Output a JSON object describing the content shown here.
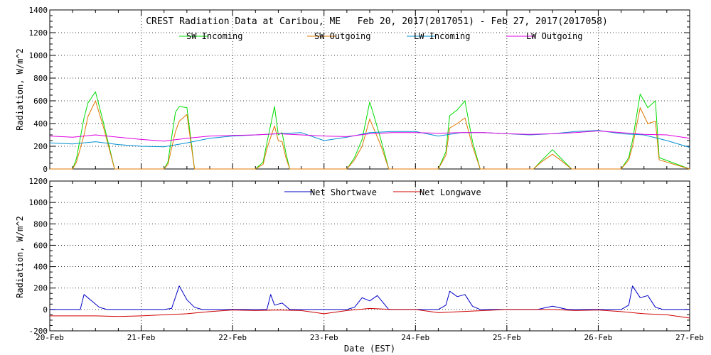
{
  "colors": {
    "sw_incoming": "#00dd00",
    "sw_outgoing": "#e07800",
    "lw_incoming": "#0090d0",
    "lw_outgoing": "#e000e0",
    "net_shortwave": "#0000c8",
    "net_longwave": "#d00000",
    "axis": "#000000",
    "grid": "#000000"
  },
  "chart_data": [
    {
      "type": "line",
      "title": "CREST Radiation Data at Caribou, ME   Feb 20, 2017(2017051) - Feb 27, 2017(2017058)",
      "xlabel": "",
      "ylabel": "Radiation, W/m^2",
      "ylim": [
        0,
        1400
      ],
      "yticks": [
        0,
        200,
        400,
        600,
        800,
        1000,
        1200,
        1400
      ],
      "xlim": [
        "20-Feb",
        "27-Feb"
      ],
      "grid": "dotted",
      "legend_position": "top",
      "series": [
        {
          "name": "SW Incoming",
          "color_key": "sw_incoming",
          "x": [
            "20-Feb 00:00",
            "20-Feb 06:00",
            "20-Feb 07:00",
            "20-Feb 09:00",
            "20-Feb 10:00",
            "20-Feb 12:00",
            "20-Feb 14:00",
            "20-Feb 17:00",
            "21-Feb 06:00",
            "21-Feb 07:00",
            "21-Feb 09:00",
            "21-Feb 10:00",
            "21-Feb 12:00",
            "21-Feb 14:00",
            "22-Feb 06:00",
            "22-Feb 08:00",
            "22-Feb 09:00",
            "22-Feb 11:00",
            "22-Feb 12:00",
            "22-Feb 13:00",
            "22-Feb 14:00",
            "22-Feb 15:00",
            "23-Feb 06:00",
            "23-Feb 08:00",
            "23-Feb 10:00",
            "23-Feb 12:00",
            "23-Feb 13:00",
            "23-Feb 15:00",
            "23-Feb 17:00",
            "24-Feb 06:00",
            "24-Feb 08:00",
            "24-Feb 09:00",
            "24-Feb 11:00",
            "24-Feb 13:00",
            "24-Feb 15:00",
            "24-Feb 17:00",
            "25-Feb 07:00",
            "25-Feb 09:00",
            "25-Feb 12:00",
            "25-Feb 14:00",
            "25-Feb 17:00",
            "26-Feb 06:00",
            "26-Feb 08:00",
            "26-Feb 09:00",
            "26-Feb 11:00",
            "26-Feb 13:00",
            "26-Feb 15:00",
            "26-Feb 16:00",
            "27-Feb 00:00"
          ],
          "y": [
            0,
            0,
            90,
            450,
            580,
            680,
            420,
            0,
            0,
            60,
            500,
            550,
            540,
            0,
            0,
            60,
            230,
            550,
            300,
            320,
            140,
            0,
            0,
            100,
            260,
            590,
            480,
            250,
            0,
            0,
            150,
            470,
            520,
            600,
            240,
            0,
            0,
            70,
            170,
            100,
            0,
            0,
            100,
            250,
            660,
            540,
            600,
            100,
            0
          ]
        },
        {
          "name": "SW Outgoing",
          "color_key": "sw_outgoing",
          "x": [
            "20-Feb 00:00",
            "20-Feb 06:00",
            "20-Feb 07:00",
            "20-Feb 09:00",
            "20-Feb 10:00",
            "20-Feb 12:00",
            "20-Feb 14:00",
            "20-Feb 17:00",
            "21-Feb 06:00",
            "21-Feb 07:00",
            "21-Feb 09:00",
            "21-Feb 10:00",
            "21-Feb 12:00",
            "21-Feb 14:00",
            "22-Feb 06:00",
            "22-Feb 08:00",
            "22-Feb 09:00",
            "22-Feb 11:00",
            "22-Feb 12:00",
            "22-Feb 13:00",
            "22-Feb 14:00",
            "22-Feb 15:00",
            "23-Feb 06:00",
            "23-Feb 08:00",
            "23-Feb 10:00",
            "23-Feb 12:00",
            "23-Feb 13:00",
            "23-Feb 15:00",
            "23-Feb 17:00",
            "24-Feb 06:00",
            "24-Feb 08:00",
            "24-Feb 09:00",
            "24-Feb 11:00",
            "24-Feb 13:00",
            "24-Feb 15:00",
            "24-Feb 17:00",
            "25-Feb 07:00",
            "25-Feb 09:00",
            "25-Feb 12:00",
            "25-Feb 14:00",
            "25-Feb 17:00",
            "26-Feb 06:00",
            "26-Feb 08:00",
            "26-Feb 09:00",
            "26-Feb 11:00",
            "26-Feb 13:00",
            "26-Feb 15:00",
            "26-Feb 16:00",
            "27-Feb 00:00"
          ],
          "y": [
            0,
            0,
            60,
            300,
            460,
            600,
            380,
            0,
            0,
            40,
            330,
            420,
            480,
            0,
            0,
            40,
            180,
            380,
            250,
            240,
            100,
            0,
            0,
            80,
            200,
            440,
            360,
            200,
            0,
            0,
            120,
            360,
            400,
            450,
            200,
            0,
            0,
            60,
            130,
            80,
            0,
            0,
            80,
            200,
            540,
            400,
            420,
            80,
            0
          ]
        },
        {
          "name": "LW Incoming",
          "color_key": "lw_incoming",
          "x": [
            "20-Feb 00:00",
            "20-Feb 06:00",
            "20-Feb 12:00",
            "20-Feb 18:00",
            "21-Feb 00:00",
            "21-Feb 06:00",
            "21-Feb 12:00",
            "21-Feb 18:00",
            "22-Feb 00:00",
            "22-Feb 06:00",
            "22-Feb 12:00",
            "22-Feb 18:00",
            "23-Feb 00:00",
            "23-Feb 06:00",
            "23-Feb 12:00",
            "23-Feb 18:00",
            "24-Feb 00:00",
            "24-Feb 06:00",
            "24-Feb 12:00",
            "24-Feb 18:00",
            "25-Feb 00:00",
            "25-Feb 06:00",
            "25-Feb 12:00",
            "25-Feb 18:00",
            "26-Feb 00:00",
            "26-Feb 06:00",
            "26-Feb 12:00",
            "26-Feb 18:00",
            "27-Feb 00:00"
          ],
          "y": [
            230,
            220,
            240,
            215,
            200,
            195,
            230,
            270,
            290,
            300,
            310,
            320,
            250,
            280,
            320,
            330,
            330,
            290,
            320,
            320,
            310,
            300,
            310,
            330,
            340,
            310,
            300,
            250,
            190
          ]
        },
        {
          "name": "LW Outgoing",
          "color_key": "lw_outgoing",
          "x": [
            "20-Feb 00:00",
            "20-Feb 06:00",
            "20-Feb 12:00",
            "20-Feb 18:00",
            "21-Feb 00:00",
            "21-Feb 06:00",
            "21-Feb 12:00",
            "21-Feb 18:00",
            "22-Feb 00:00",
            "22-Feb 06:00",
            "22-Feb 12:00",
            "22-Feb 18:00",
            "23-Feb 00:00",
            "23-Feb 06:00",
            "23-Feb 12:00",
            "23-Feb 18:00",
            "24-Feb 00:00",
            "24-Feb 06:00",
            "24-Feb 12:00",
            "24-Feb 18:00",
            "25-Feb 00:00",
            "25-Feb 06:00",
            "25-Feb 12:00",
            "25-Feb 18:00",
            "26-Feb 00:00",
            "26-Feb 06:00",
            "26-Feb 12:00",
            "26-Feb 18:00",
            "27-Feb 00:00"
          ],
          "y": [
            290,
            280,
            300,
            280,
            260,
            245,
            270,
            290,
            295,
            300,
            310,
            300,
            290,
            285,
            310,
            320,
            320,
            315,
            320,
            320,
            310,
            305,
            310,
            320,
            335,
            320,
            305,
            300,
            270
          ]
        }
      ]
    },
    {
      "type": "line",
      "title": "",
      "xlabel": "Date (EST)",
      "ylabel": "Radiation, W/m^2",
      "ylim": [
        -200,
        1200
      ],
      "yticks": [
        -200,
        0,
        200,
        400,
        600,
        800,
        1000,
        1200
      ],
      "xlim": [
        "20-Feb",
        "27-Feb"
      ],
      "xticks": [
        "20-Feb",
        "21-Feb",
        "22-Feb",
        "23-Feb",
        "24-Feb",
        "25-Feb",
        "26-Feb",
        "27-Feb"
      ],
      "grid": "dotted",
      "legend_position": "top",
      "series": [
        {
          "name": "Net Shortwave",
          "color_key": "net_shortwave",
          "x": [
            "20-Feb 00:00",
            "20-Feb 08:00",
            "20-Feb 09:00",
            "20-Feb 11:00",
            "20-Feb 13:00",
            "20-Feb 15:00",
            "20-Feb 17:00",
            "21-Feb 06:00",
            "21-Feb 08:00",
            "21-Feb 10:00",
            "21-Feb 12:00",
            "21-Feb 14:00",
            "21-Feb 16:00",
            "22-Feb 00:00",
            "22-Feb 09:00",
            "22-Feb 10:00",
            "22-Feb 11:00",
            "22-Feb 13:00",
            "22-Feb 15:00",
            "23-Feb 06:00",
            "23-Feb 08:00",
            "23-Feb 10:00",
            "23-Feb 12:00",
            "23-Feb 14:00",
            "23-Feb 17:00",
            "24-Feb 06:00",
            "24-Feb 08:00",
            "24-Feb 09:00",
            "24-Feb 11:00",
            "24-Feb 13:00",
            "24-Feb 15:00",
            "24-Feb 17:00",
            "25-Feb 08:00",
            "25-Feb 12:00",
            "25-Feb 16:00",
            "26-Feb 06:00",
            "26-Feb 08:00",
            "26-Feb 09:00",
            "26-Feb 11:00",
            "26-Feb 13:00",
            "26-Feb 15:00",
            "26-Feb 17:00",
            "27-Feb 00:00"
          ],
          "y": [
            0,
            0,
            140,
            80,
            20,
            0,
            0,
            0,
            10,
            220,
            90,
            20,
            0,
            0,
            0,
            140,
            40,
            60,
            0,
            0,
            20,
            110,
            80,
            130,
            0,
            0,
            40,
            170,
            120,
            140,
            30,
            0,
            0,
            30,
            0,
            0,
            40,
            220,
            110,
            130,
            20,
            0,
            0
          ]
        },
        {
          "name": "Net Longwave",
          "color_key": "net_longwave",
          "x": [
            "20-Feb 00:00",
            "20-Feb 06:00",
            "20-Feb 12:00",
            "20-Feb 18:00",
            "21-Feb 00:00",
            "21-Feb 06:00",
            "21-Feb 12:00",
            "21-Feb 18:00",
            "22-Feb 00:00",
            "22-Feb 06:00",
            "22-Feb 12:00",
            "22-Feb 18:00",
            "23-Feb 00:00",
            "23-Feb 06:00",
            "23-Feb 12:00",
            "23-Feb 18:00",
            "24-Feb 00:00",
            "24-Feb 06:00",
            "24-Feb 12:00",
            "24-Feb 18:00",
            "25-Feb 00:00",
            "25-Feb 06:00",
            "25-Feb 12:00",
            "25-Feb 18:00",
            "26-Feb 00:00",
            "26-Feb 06:00",
            "26-Feb 12:00",
            "26-Feb 18:00",
            "27-Feb 00:00"
          ],
          "y": [
            -60,
            -60,
            -60,
            -65,
            -60,
            -50,
            -40,
            -20,
            -5,
            -10,
            -5,
            -10,
            -40,
            -10,
            10,
            0,
            0,
            -30,
            -20,
            -10,
            0,
            0,
            0,
            -10,
            -5,
            -20,
            -40,
            -50,
            -80
          ]
        }
      ]
    }
  ]
}
